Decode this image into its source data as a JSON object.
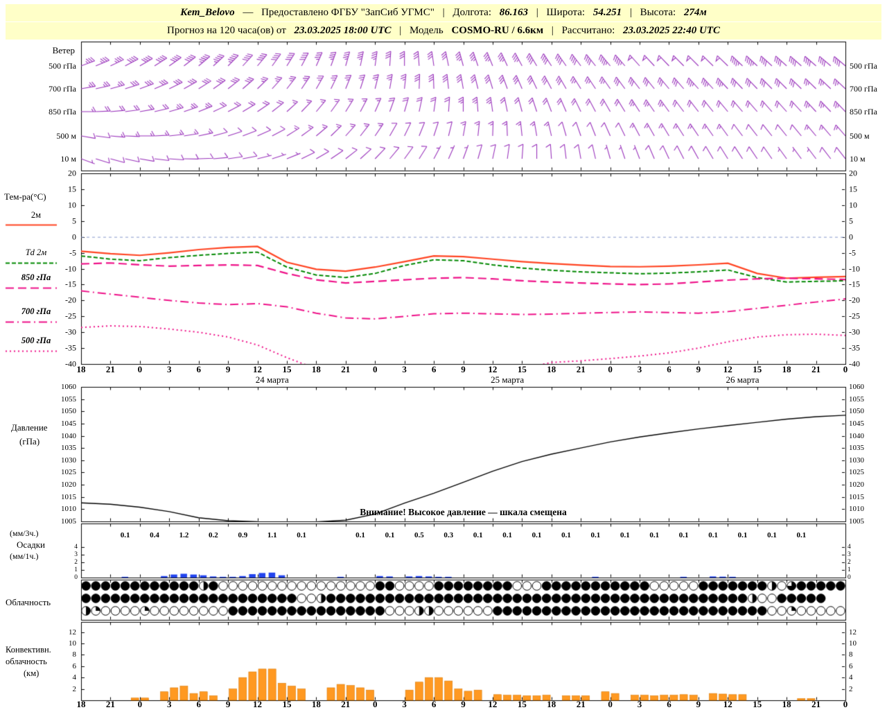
{
  "header": {
    "station": "Kem_Belovo",
    "dash": "—",
    "provided": "Предоставлено ФГБУ \"ЗапСиб УГМС\"",
    "sep": "|",
    "lon_label": "Долгота:",
    "lon_value": "86.163",
    "lat_label": "Широта:",
    "lat_value": "54.251",
    "alt_label": "Высота:",
    "alt_value": "274м",
    "forecast_label": "Прогноз на 120 часа(ов) от",
    "forecast_start": "23.03.2025 18:00 UTC",
    "model_label": "Модель",
    "model_value": "COSMO-RU / 6.6км",
    "calc_label": "Рассчитано:",
    "calc_value": "23.03.2025 22:40 UTC"
  },
  "colors": {
    "header_bg": "#ffffc8",
    "wind_barbs": "#9933bb",
    "pressure_line": "#000000",
    "precip_bar": "#2244ee",
    "conv_bar": "#ff9922",
    "zero_line": "#8899cc"
  },
  "panels": {
    "wind": {
      "title": "Ветер"
    },
    "temp": {
      "title": "Тем-ра(°C)"
    },
    "pressure": {
      "line1": "Давление",
      "line2": "(гПа)",
      "warning": "Внимание! Высокое давление — шкала смещена"
    },
    "precip": {
      "line1": "(мм/3ч.)",
      "line2": "Осадки",
      "line3": "(мм/1ч.)"
    },
    "cloud": {
      "title": "Облачность"
    },
    "conv": {
      "line1": "Конвективн.",
      "line2": "облачность",
      "line3": "(км)"
    }
  },
  "time_axis": {
    "hours_total": 78,
    "step_hours": 3,
    "tick_labels": [
      "18",
      "21",
      "0",
      "3",
      "6",
      "9",
      "12",
      "15",
      "18",
      "21",
      "0",
      "3",
      "6",
      "9",
      "12",
      "15",
      "18",
      "21",
      "0",
      "3",
      "6",
      "9",
      "12",
      "15",
      "18",
      "21",
      "0"
    ],
    "dates": [
      {
        "text": "24 марта",
        "hour": 19.5
      },
      {
        "text": "25 марта",
        "hour": 43.5
      },
      {
        "text": "26 марта",
        "hour": 67.5
      }
    ]
  },
  "chart_data": [
    {
      "id": "wind",
      "type": "wind-barbs",
      "hours_step": 3,
      "levels": [
        {
          "name": "500 гПа",
          "dirs": [
            70,
            65,
            60,
            55,
            50,
            45,
            40,
            32,
            24,
            16,
            8,
            0,
            352,
            345,
            338,
            332,
            327,
            323,
            320,
            318,
            316,
            315,
            314,
            313,
            312,
            311,
            310
          ],
          "speeds": [
            18,
            19,
            20,
            21,
            22,
            22,
            21,
            20,
            19,
            18,
            17,
            16,
            16,
            17,
            18,
            19,
            20,
            21,
            22,
            23,
            24,
            24,
            23,
            22,
            21,
            20,
            20
          ]
        },
        {
          "name": "700 гПа",
          "dirs": [
            80,
            75,
            70,
            64,
            58,
            52,
            46,
            38,
            30,
            22,
            14,
            6,
            358,
            350,
            343,
            337,
            332,
            328,
            325,
            322,
            320,
            318,
            317,
            316,
            315,
            314,
            313
          ],
          "speeds": [
            13,
            14,
            15,
            16,
            16,
            15,
            14,
            13,
            12,
            12,
            13,
            14,
            15,
            15,
            16,
            16,
            15,
            14,
            14,
            15,
            16,
            17,
            17,
            16,
            15,
            14,
            14
          ]
        },
        {
          "name": "850 гПа",
          "dirs": [
            90,
            85,
            80,
            74,
            68,
            62,
            56,
            48,
            40,
            32,
            24,
            16,
            8,
            0,
            352,
            345,
            339,
            334,
            330,
            327,
            324,
            322,
            320,
            319,
            318,
            317,
            316
          ],
          "speeds": [
            9,
            10,
            11,
            12,
            12,
            11,
            10,
            9,
            8,
            8,
            9,
            10,
            11,
            12,
            12,
            11,
            10,
            10,
            11,
            12,
            12,
            11,
            10,
            10,
            11,
            12,
            12
          ]
        },
        {
          "name": "500 м",
          "dirs": [
            100,
            95,
            90,
            84,
            78,
            72,
            66,
            58,
            50,
            42,
            34,
            26,
            18,
            10,
            2,
            354,
            347,
            341,
            336,
            332,
            329,
            326,
            324,
            322,
            321,
            320,
            319
          ],
          "speeds": [
            6,
            7,
            8,
            8,
            7,
            6,
            6,
            7,
            8,
            8,
            7,
            6,
            6,
            7,
            8,
            8,
            7,
            6,
            6,
            7,
            8,
            8,
            7,
            6,
            6,
            7,
            8
          ]
        },
        {
          "name": "10 м",
          "dirs": [
            110,
            105,
            100,
            94,
            88,
            82,
            76,
            68,
            60,
            52,
            44,
            36,
            28,
            20,
            12,
            4,
            356,
            350,
            344,
            339,
            335,
            331,
            328,
            326,
            324,
            323,
            322
          ],
          "speeds": [
            4,
            5,
            5,
            6,
            6,
            5,
            4,
            4,
            5,
            6,
            6,
            5,
            4,
            4,
            5,
            6,
            6,
            5,
            4,
            4,
            5,
            6,
            6,
            5,
            4,
            4,
            5
          ]
        }
      ]
    },
    {
      "id": "temperature",
      "type": "line",
      "ylim": [
        -40,
        20
      ],
      "ytick_step": 5,
      "x_step_hours": 3,
      "series": [
        {
          "name": "2м",
          "color": "#ff4422",
          "dash": [],
          "width": 2.2,
          "values": [
            -4.5,
            -5.3,
            -5.8,
            -5.0,
            -4.0,
            -3.3,
            -3.0,
            -8.0,
            -10.2,
            -10.8,
            -9.5,
            -7.8,
            -6.0,
            -6.2,
            -7.0,
            -7.8,
            -8.4,
            -8.9,
            -9.3,
            -9.4,
            -9.2,
            -8.8,
            -8.3,
            -11.5,
            -13.0,
            -12.7,
            -12.5
          ]
        },
        {
          "name": "Td 2м",
          "color": "#008800",
          "dash": [
            6,
            3
          ],
          "width": 2,
          "values": [
            -6.0,
            -7.0,
            -7.5,
            -6.5,
            -5.8,
            -5.2,
            -4.8,
            -9.5,
            -12.0,
            -12.8,
            -11.5,
            -9.0,
            -7.2,
            -7.5,
            -8.8,
            -9.8,
            -10.5,
            -11.0,
            -11.3,
            -11.6,
            -11.4,
            -11.0,
            -10.4,
            -12.8,
            -14.2,
            -14.0,
            -13.8
          ]
        },
        {
          "name": "850 гПа",
          "color": "#ee1188",
          "dash": [
            12,
            6
          ],
          "width": 2.2,
          "values": [
            -8.5,
            -8.2,
            -8.8,
            -9.2,
            -9.0,
            -8.8,
            -9.0,
            -11.5,
            -13.5,
            -14.5,
            -14.0,
            -13.5,
            -13.0,
            -12.8,
            -13.2,
            -13.8,
            -14.2,
            -14.5,
            -14.8,
            -15.0,
            -14.8,
            -14.2,
            -13.6,
            -13.2,
            -13.0,
            -13.2,
            -13.4
          ]
        },
        {
          "name": "700 гПа",
          "color": "#ee1188",
          "dash": [
            12,
            5,
            2,
            5
          ],
          "width": 2,
          "values": [
            -17.0,
            -18.0,
            -19.0,
            -20.0,
            -20.8,
            -21.3,
            -21.0,
            -22.0,
            -24.0,
            -25.5,
            -25.8,
            -25.0,
            -24.2,
            -24.0,
            -24.2,
            -24.4,
            -24.3,
            -24.0,
            -23.8,
            -23.6,
            -23.8,
            -24.0,
            -23.5,
            -22.5,
            -21.5,
            -20.5,
            -19.5
          ]
        },
        {
          "name": "500 гПа",
          "color": "#ee1188",
          "dash": [
            2,
            4
          ],
          "width": 2,
          "values": [
            -28.5,
            -28.0,
            -28.2,
            -29.0,
            -30.0,
            -31.5,
            -34.0,
            -38.0,
            -41.5,
            -43.0,
            -44.0,
            -44.0,
            -43.5,
            -43.0,
            -42.5,
            -41.5,
            -39.5,
            -39.0,
            -38.3,
            -37.5,
            -36.5,
            -35.0,
            -33.0,
            -31.5,
            -30.8,
            -30.6,
            -31.0
          ]
        }
      ]
    },
    {
      "id": "pressure",
      "type": "line",
      "ylim": [
        1005,
        1060
      ],
      "ytick_step": 5,
      "x_step_hours": 3,
      "series": [
        {
          "name": "Давление",
          "color": "#000000",
          "dash": [],
          "width": 1.4,
          "values": [
            1012.6,
            1012.0,
            1010.8,
            1009.0,
            1006.5,
            1005.3,
            1004.9,
            1004.8,
            1004.8,
            1005.5,
            1008.0,
            1012.5,
            1016.5,
            1021.0,
            1025.5,
            1029.5,
            1032.5,
            1035.0,
            1037.5,
            1039.5,
            1041.2,
            1042.8,
            1044.2,
            1045.5,
            1046.8,
            1047.8,
            1048.4
          ]
        }
      ]
    },
    {
      "id": "precipitation",
      "type": "bar",
      "ylim": [
        0,
        4
      ],
      "yticks": [
        0,
        1,
        2,
        3,
        4
      ],
      "hourly": [
        0,
        0,
        0,
        0,
        0.1,
        0,
        0,
        0,
        0.2,
        0.4,
        0.5,
        0.4,
        0.3,
        0.15,
        0.1,
        0.1,
        0.2,
        0.45,
        0.6,
        0.65,
        0.3,
        0,
        0,
        0,
        0,
        0,
        0.1,
        0,
        0,
        0,
        0.2,
        0.15,
        0,
        0.15,
        0.2,
        0.15,
        0.1,
        0.1,
        0,
        0,
        0,
        0,
        0,
        0,
        0,
        0,
        0,
        0,
        0,
        0,
        0,
        0,
        0.1,
        0,
        0,
        0,
        0,
        0,
        0,
        0,
        0,
        0.1,
        0,
        0,
        0.15,
        0.12,
        0.1,
        0,
        0,
        0,
        0,
        0,
        0,
        0,
        0,
        0,
        0,
        0
      ],
      "sums_3h": {
        "slots": [
          1,
          2,
          3,
          4,
          5,
          6,
          7,
          9,
          10,
          11,
          12,
          13,
          14,
          15,
          16,
          17,
          18,
          19,
          20,
          21,
          22,
          23,
          24
        ],
        "values": [
          "0.1",
          "0.4",
          "1.2",
          "0.2",
          "0.9",
          "1.1",
          "0.1",
          "0.1",
          "0.1",
          "0.5",
          "0.3",
          "0.1",
          "0.1",
          "0.1",
          "0.1",
          "0.1",
          "0.1",
          "0.1",
          "0.1",
          "0.1",
          "0.1",
          "0.1",
          "0.1"
        ]
      }
    },
    {
      "id": "cloudiness",
      "type": "symbols",
      "codes": {
        "F": "full",
        "T": "three-quarters",
        "L": "half",
        "Q": "quarter",
        "O": "clear"
      },
      "rows": [
        "FFFFFFFFFFFFLFOOOOOOOOOOOOOOOOFFOOOOFFFFFFFFOOOFFFFFFFFFFFOOOOOFFFFFFFLOTFFFFF",
        "FFFFFFFFFFFFFFFFFFFFFFOOLFFFFFFFFFFFFFFFFFFFFFFFFFFFFFFFFFFFFFFFFFFFLOOFFFFF",
        "LQOOOOQOOOOOOOOFFFFFFFFFFFFFFFFOOOLLOOOOOOFFFFFFFFFFFFFFFFFFFFFFFFFFFFOOQOOOOO"
      ]
    },
    {
      "id": "convective",
      "type": "bar",
      "ylim": [
        0,
        12
      ],
      "yticks": [
        2,
        4,
        6,
        8,
        10,
        12
      ],
      "hourly": [
        0,
        0,
        0,
        0,
        0,
        0.4,
        0.4,
        0,
        1.5,
        2.2,
        2.5,
        1.2,
        1.5,
        0.8,
        0,
        2.0,
        4.0,
        5.0,
        5.5,
        5.5,
        3.0,
        2.5,
        2.0,
        0,
        0,
        2.2,
        2.8,
        2.6,
        2.2,
        1.8,
        0,
        0,
        0,
        1.8,
        3.2,
        4.0,
        4.0,
        3.4,
        2.0,
        1.6,
        1.8,
        0,
        1.0,
        0.9,
        0.9,
        0.8,
        0.8,
        0.9,
        0,
        0.8,
        0.8,
        0.8,
        0,
        1.5,
        1.2,
        0,
        0.9,
        0.9,
        0.8,
        0.9,
        0.9,
        1.0,
        0.9,
        0,
        1.2,
        1.1,
        1.0,
        1.0,
        0,
        0,
        0,
        0,
        0,
        0.3,
        0.3,
        0,
        0,
        0
      ]
    }
  ]
}
